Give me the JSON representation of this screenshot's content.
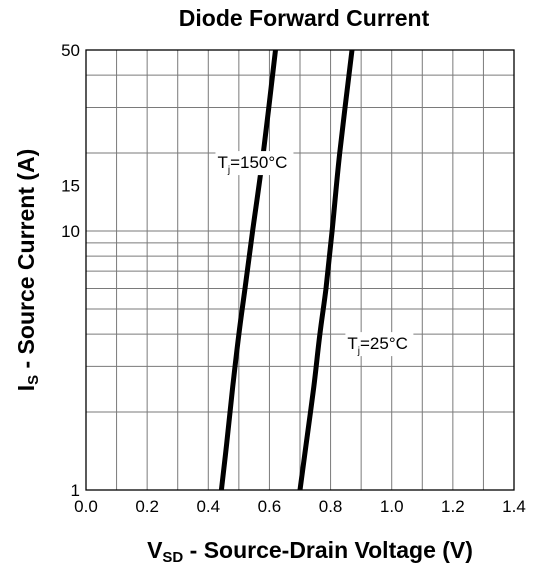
{
  "chart_data": {
    "type": "line",
    "title": "Diode Forward Current",
    "xlabel": {
      "main": "V",
      "sub": "SD",
      "rest": " - Source-Drain Voltage (V)"
    },
    "ylabel": {
      "main": "I",
      "sub": "S",
      "rest": " - Source Current (A)"
    },
    "xlim": [
      0.0,
      1.4
    ],
    "ylim": [
      1,
      50
    ],
    "y_scale": "log",
    "grid": true,
    "x_ticks": [
      0.0,
      0.2,
      0.4,
      0.6,
      0.8,
      1.0,
      1.2,
      1.4
    ],
    "x_tick_labels": [
      "0.0",
      "0.2",
      "0.4",
      "0.6",
      "0.8",
      "1.0",
      "1.2",
      "1.4"
    ],
    "y_ticks": [
      1,
      10,
      15,
      50
    ],
    "y_tick_labels": [
      "1",
      "10",
      "15",
      "50"
    ],
    "series": [
      {
        "name": "Tj=150°C",
        "points": [
          [
            0.443,
            1
          ],
          [
            0.46,
            1.5
          ],
          [
            0.48,
            2.5
          ],
          [
            0.5,
            4
          ],
          [
            0.52,
            6
          ],
          [
            0.545,
            10
          ],
          [
            0.58,
            20
          ],
          [
            0.62,
            50
          ]
        ]
      },
      {
        "name": "Tj=25°C",
        "points": [
          [
            0.7,
            1
          ],
          [
            0.72,
            1.5
          ],
          [
            0.745,
            2.5
          ],
          [
            0.765,
            4
          ],
          [
            0.785,
            6
          ],
          [
            0.805,
            10
          ],
          [
            0.83,
            20
          ],
          [
            0.87,
            50
          ]
        ]
      }
    ],
    "annotations": [
      {
        "series": 0,
        "main": "T",
        "sub": "j",
        "rest": "=150°C",
        "at": [
          0.43,
          17.5
        ]
      },
      {
        "series": 1,
        "main": "T",
        "sub": "j",
        "rest": "=25°C",
        "at": [
          0.855,
          3.5
        ]
      }
    ]
  }
}
